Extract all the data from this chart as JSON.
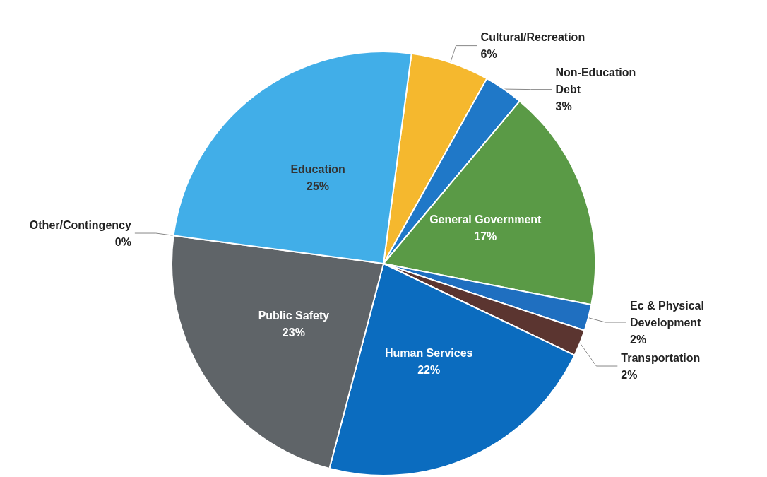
{
  "chart_data": {
    "type": "pie",
    "categories": [
      "Cultural/Recreation",
      "Non-Education Debt",
      "General Government",
      "Ec & Physical Development",
      "Transportation",
      "Human Services",
      "Public Safety",
      "Other/Contingency",
      "Education"
    ],
    "values": [
      6,
      3,
      17,
      2,
      2,
      22,
      23,
      0,
      25
    ],
    "value_labels": [
      "6%",
      "3%",
      "17%",
      "2%",
      "2%",
      "22%",
      "23%",
      "0%",
      "25%"
    ],
    "colors": [
      "#f5b82e",
      "#1f78c8",
      "#5a9a46",
      "#1f6fc0",
      "#5b3530",
      "#0b6cbf",
      "#5f6468",
      "#7f7f7f",
      "#41aee8"
    ]
  }
}
